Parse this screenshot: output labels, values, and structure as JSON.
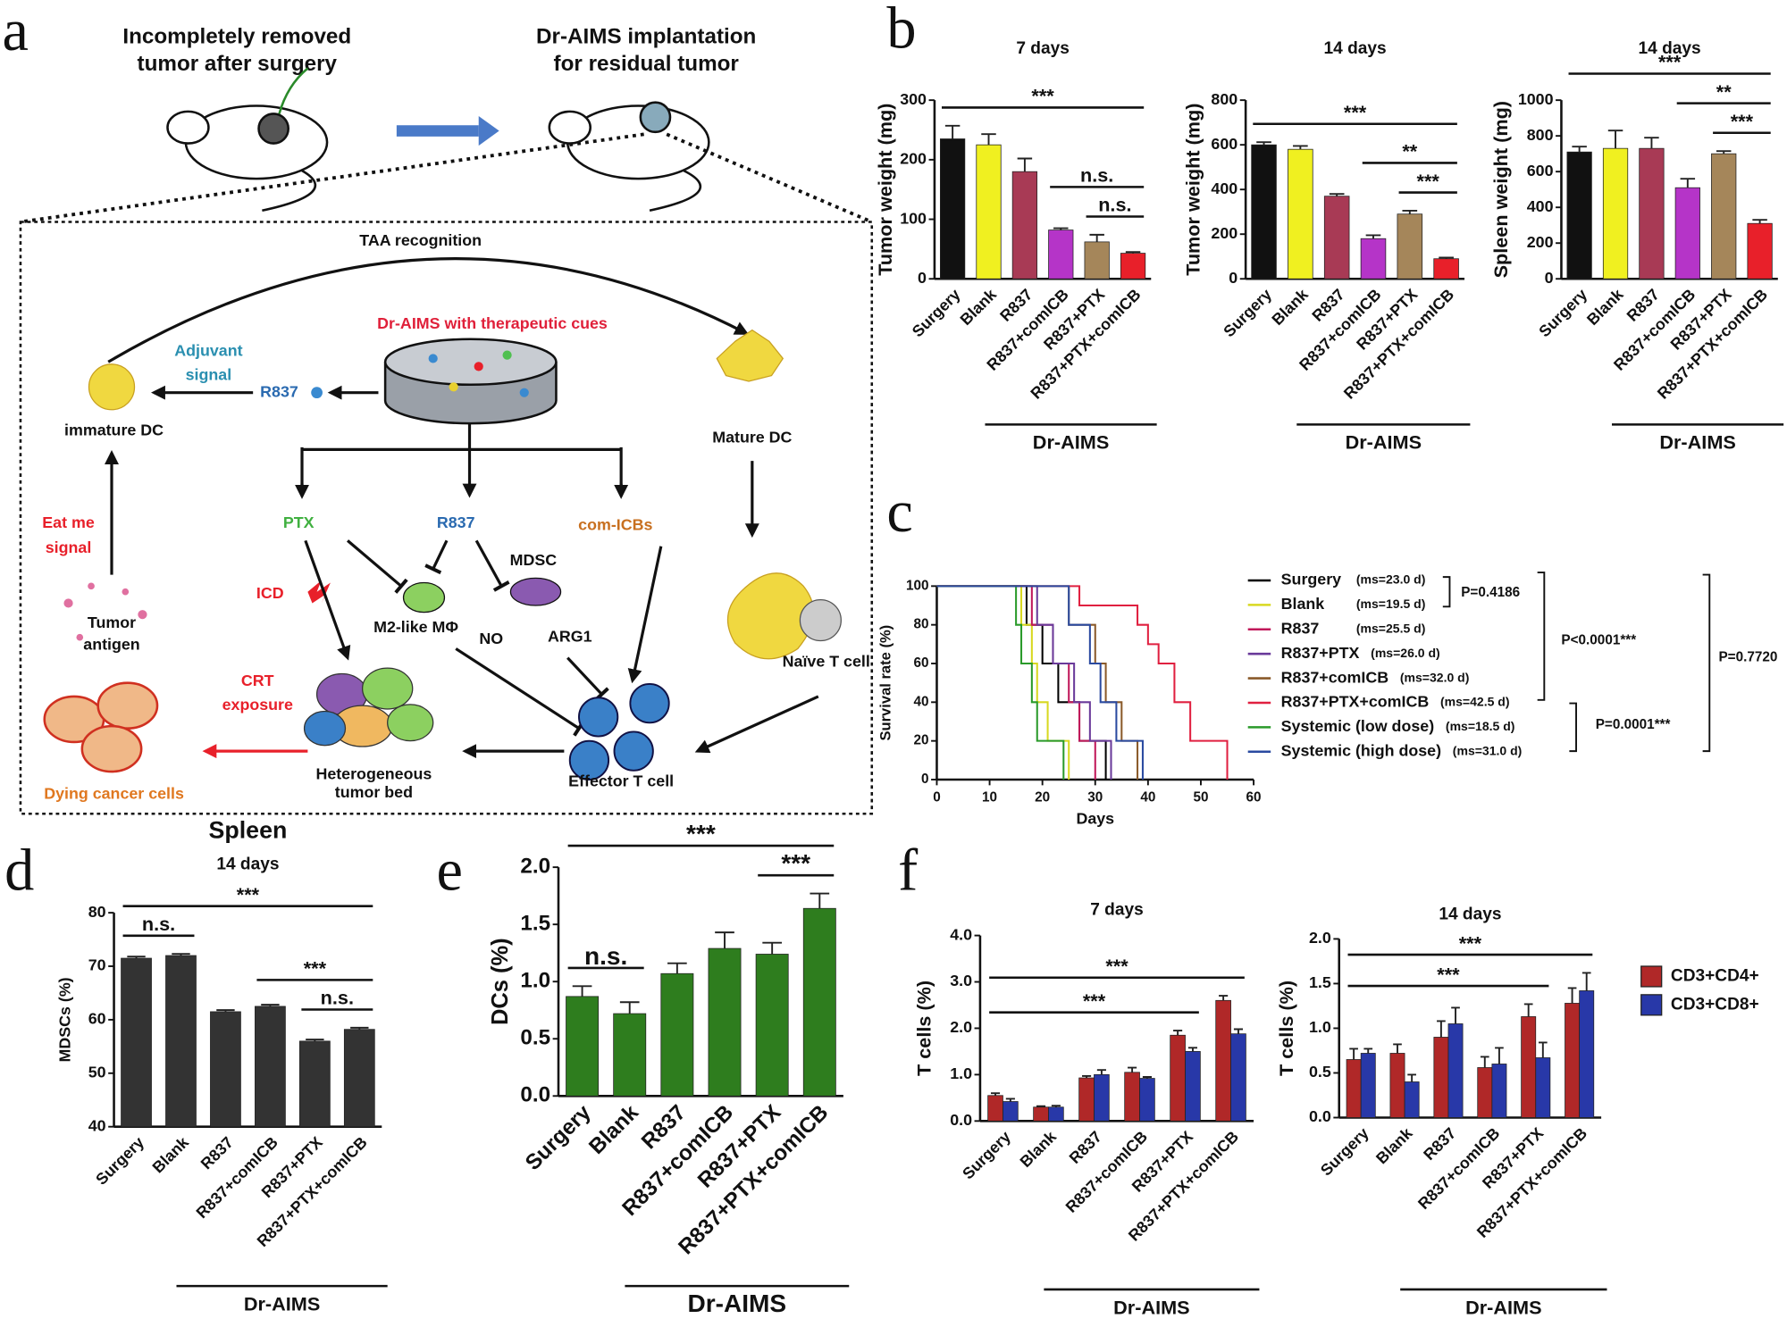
{
  "panel_labels": [
    "a",
    "b",
    "c",
    "d",
    "e",
    "f"
  ],
  "diagram": {
    "left_caption": [
      "Incompletely removed",
      "tumor after surgery"
    ],
    "right_caption": [
      "Dr-AIMS implantation",
      "for residual tumor"
    ],
    "taa": "TAA recognition",
    "scaffold": "Dr-AIMS with therapeutic cues",
    "adjuvant": [
      "Adjuvant",
      "signal"
    ],
    "r837_top": "R837",
    "immature_dc": "immature DC",
    "mature_dc": "Mature DC",
    "ptx": "PTX",
    "r837_mid": "R837",
    "com_icbs": "com-ICBs",
    "icd": "ICD",
    "m2": "M2-like MΦ",
    "mdsc": "MDSC",
    "no": "NO",
    "arg1": "ARG1",
    "eat_me": [
      "Eat me",
      "signal"
    ],
    "tumor_antigen": [
      "Tumor",
      "antigen"
    ],
    "crt": [
      "CRT",
      "exposure"
    ],
    "tumor_bed": [
      "Heterogeneous",
      "tumor bed"
    ],
    "effector": "Effector T cell",
    "naive": "Naïve T cell",
    "dying": "Dying cancer cells"
  },
  "chart_data": [
    {
      "type": "bar",
      "title": "7 days",
      "y_label": "Tumor weight (mg)",
      "group_label": "Dr-AIMS",
      "categories": [
        "Surgery",
        "Blank",
        "R837",
        "R837+comICB",
        "R837+PTX",
        "R837+PTX+comICB"
      ],
      "values": [
        235,
        225,
        180,
        82,
        62,
        43
      ],
      "errors": [
        22,
        18,
        22,
        3,
        12,
        2
      ],
      "colors": [
        "#111111",
        "#f0f020",
        "#a83a55",
        "#b534c8",
        "#a5865a",
        "#e8202a"
      ],
      "ylim": [
        0,
        300
      ],
      "yticks": [
        0,
        100,
        200,
        300
      ],
      "annotations": [
        {
          "text": "***",
          "from": "Surgery",
          "to": "R837+PTX+comICB"
        },
        {
          "text": "n.s.",
          "from": "R837+comICB",
          "to": "R837+PTX+comICB"
        },
        {
          "text": "n.s.",
          "from": "R837+PTX",
          "to": "R837+PTX+comICB"
        }
      ]
    },
    {
      "type": "bar",
      "title": "14 days",
      "y_label": "Tumor weight (mg)",
      "group_label": "Dr-AIMS",
      "categories": [
        "Surgery",
        "Blank",
        "R837",
        "R837+comICB",
        "R837+PTX",
        "R837+PTX+comICB"
      ],
      "values": [
        600,
        580,
        370,
        180,
        290,
        90
      ],
      "errors": [
        12,
        15,
        10,
        15,
        15,
        5
      ],
      "colors": [
        "#111111",
        "#f0f020",
        "#a83a55",
        "#b534c8",
        "#a5865a",
        "#e8202a"
      ],
      "ylim": [
        0,
        800
      ],
      "yticks": [
        0,
        200,
        400,
        600,
        800
      ],
      "annotations": [
        {
          "text": "***",
          "from": "Surgery",
          "to": "R837+PTX+comICB"
        },
        {
          "text": "**",
          "from": "R837+comICB",
          "to": "R837+PTX+comICB"
        },
        {
          "text": "***",
          "from": "R837+PTX",
          "to": "R837+PTX+comICB"
        }
      ]
    },
    {
      "type": "bar",
      "title": "14 days",
      "y_label": "Spleen weight (mg)",
      "group_label": "Dr-AIMS",
      "categories": [
        "Surgery",
        "Blank",
        "R837",
        "R837+comICB",
        "R837+PTX",
        "R837+PTX+comICB"
      ],
      "values": [
        710,
        730,
        730,
        510,
        700,
        310
      ],
      "errors": [
        30,
        100,
        60,
        50,
        15,
        20
      ],
      "colors": [
        "#111111",
        "#f0f020",
        "#a83a55",
        "#b534c8",
        "#a5865a",
        "#e8202a"
      ],
      "ylim": [
        0,
        1000
      ],
      "yticks": [
        0,
        200,
        400,
        600,
        800,
        1000
      ],
      "annotations": [
        {
          "text": "***",
          "from": "Surgery",
          "to": "R837+PTX+comICB"
        },
        {
          "text": "**",
          "from": "R837+comICB",
          "to": "R837+PTX+comICB"
        },
        {
          "text": "***",
          "from": "R837+PTX",
          "to": "R837+PTX+comICB"
        }
      ]
    },
    {
      "type": "step",
      "x_label": "Days",
      "y_label": "Survival rate (%)",
      "xlim": [
        0,
        60
      ],
      "xticks": [
        0,
        10,
        20,
        30,
        40,
        50,
        60
      ],
      "ylim": [
        0,
        100
      ],
      "yticks": [
        0,
        20,
        40,
        60,
        80,
        100
      ],
      "series": [
        {
          "name": "Surgery",
          "note": "(ms=23.0 d)",
          "color": "#000000",
          "x": [
            0,
            17,
            20,
            23,
            27,
            32
          ],
          "values": [
            100,
            80,
            60,
            40,
            20,
            0
          ]
        },
        {
          "name": "Blank",
          "note": "(ms=19.5 d)",
          "color": "#d8d820",
          "x": [
            0,
            16,
            18,
            19,
            21,
            25
          ],
          "values": [
            100,
            80,
            60,
            40,
            20,
            0
          ]
        },
        {
          "name": "R837",
          "note": "(ms=25.5 d)",
          "color": "#c0185a",
          "x": [
            0,
            18,
            22,
            25,
            27,
            30
          ],
          "values": [
            100,
            80,
            60,
            40,
            20,
            0
          ]
        },
        {
          "name": "R837+PTX",
          "note": "(ms=26.0 d)",
          "color": "#6a3a9a",
          "x": [
            0,
            19,
            22,
            26,
            29,
            33
          ],
          "values": [
            100,
            80,
            60,
            40,
            20,
            0
          ]
        },
        {
          "name": "R837+comICB",
          "note": "(ms=32.0 d)",
          "color": "#8a5a2a",
          "x": [
            0,
            25,
            30,
            32,
            35,
            38
          ],
          "values": [
            100,
            80,
            60,
            40,
            20,
            0
          ]
        },
        {
          "name": "R837+PTX+comICB",
          "note": "(ms=42.5 d)",
          "color": "#e02040",
          "x": [
            0,
            27,
            38,
            40,
            42,
            45,
            48,
            55
          ],
          "values": [
            100,
            90,
            80,
            70,
            60,
            40,
            20,
            0
          ]
        },
        {
          "name": "Systemic (low dose)",
          "note": "(ms=18.5 d)",
          "color": "#2a9a2a",
          "x": [
            0,
            15,
            16,
            18,
            19,
            24
          ],
          "values": [
            100,
            80,
            60,
            40,
            20,
            0
          ]
        },
        {
          "name": "Systemic (high dose)",
          "note": "(ms=31.0 d)",
          "color": "#2a4aa0",
          "x": [
            0,
            25,
            29,
            31,
            34,
            39
          ],
          "values": [
            100,
            80,
            60,
            40,
            20,
            0
          ]
        }
      ],
      "annotations": [
        "P=0.4186",
        "P<0.0001***",
        "P=0.7720",
        "P=0.0001***"
      ]
    },
    {
      "type": "bar",
      "suptitle": "Spleen",
      "title": "14 days",
      "y_label": "MDSCs (%)",
      "group_label": "Dr-AIMS",
      "categories": [
        "Surgery",
        "Blank",
        "R837",
        "R837+comICB",
        "R837+PTX",
        "R837+PTX+comICB"
      ],
      "values": [
        71.5,
        72,
        61.5,
        62.5,
        56,
        58.2
      ],
      "errors": [
        0.3,
        0.3,
        0.3,
        0.3,
        0.3,
        0.3
      ],
      "color": "#333333",
      "ylim": [
        40,
        80
      ],
      "yticks": [
        40,
        50,
        60,
        70,
        80
      ],
      "annotations": [
        {
          "text": "***",
          "from": "Surgery",
          "to": "R837+PTX+comICB"
        },
        {
          "text": "n.s.",
          "from": "Surgery",
          "to": "Blank"
        },
        {
          "text": "***",
          "from": "R837+comICB",
          "to": "R837+PTX+comICB"
        },
        {
          "text": "n.s.",
          "from": "R837+PTX",
          "to": "R837+PTX+comICB"
        }
      ]
    },
    {
      "type": "bar",
      "y_label": "DCs (%)",
      "group_label": "Dr-AIMS",
      "categories": [
        "Surgery",
        "Blank",
        "R837",
        "R837+comICB",
        "R837+PTX",
        "R837+PTX+comICB"
      ],
      "values": [
        0.87,
        0.72,
        1.07,
        1.29,
        1.24,
        1.64
      ],
      "errors": [
        0.09,
        0.1,
        0.09,
        0.14,
        0.1,
        0.13
      ],
      "color": "#2e7d1e",
      "ylim": [
        0,
        2
      ],
      "yticks": [
        {
          "value": 0,
          "label": "0.0"
        },
        0.5,
        {
          "value": 1,
          "label": "1.0"
        },
        1.5,
        {
          "value": 2,
          "label": "2.0"
        }
      ],
      "annotations": [
        {
          "text": "***",
          "from": "Surgery",
          "to": "R837+PTX+comICB"
        },
        {
          "text": "n.s.",
          "from": "Surgery",
          "to": "Blank"
        },
        {
          "text": "***",
          "from": "R837+PTX",
          "to": "R837+PTX+comICB"
        }
      ]
    },
    {
      "type": "bar",
      "title": "7 days",
      "y_label": "T cells (%)",
      "group_label": "Dr-AIMS",
      "categories": [
        "Surgery",
        "Blank",
        "R837",
        "R837+comICB",
        "R837+PTX",
        "R837+PTX+comICB"
      ],
      "series": [
        {
          "color": "#b02828",
          "values": [
            0.55,
            0.3,
            0.93,
            1.05,
            1.85,
            2.6
          ],
          "errors": [
            0.05,
            0.02,
            0.04,
            0.1,
            0.1,
            0.1
          ]
        },
        {
          "color": "#2838a8",
          "values": [
            0.42,
            0.3,
            1.0,
            0.92,
            1.5,
            1.88
          ],
          "errors": [
            0.06,
            0.03,
            0.1,
            0.03,
            0.08,
            0.1
          ]
        }
      ],
      "ylim": [
        0,
        4
      ],
      "yticks": [
        {
          "value": 0,
          "label": "0.0"
        },
        {
          "value": 1,
          "label": "1.0"
        },
        {
          "value": 2,
          "label": "2.0"
        },
        {
          "value": 3,
          "label": "3.0"
        },
        {
          "value": 4,
          "label": "4.0"
        }
      ],
      "annotations": [
        {
          "text": "***",
          "from": "Surgery",
          "to": "R837+PTX+comICB"
        },
        {
          "text": "***",
          "from": "Surgery",
          "to": "R837+PTX"
        }
      ]
    },
    {
      "type": "bar",
      "title": "14 days",
      "y_label": "T cells (%)",
      "group_label": "Dr-AIMS",
      "legend": "right",
      "categories": [
        "Surgery",
        "Blank",
        "R837",
        "R837+comICB",
        "R837+PTX",
        "R837+PTX+comICB"
      ],
      "series": [
        {
          "name": "CD3+CD4+",
          "color": "#b02828",
          "values": [
            0.65,
            0.72,
            0.9,
            0.56,
            1.13,
            1.28
          ],
          "errors": [
            0.12,
            0.1,
            0.18,
            0.12,
            0.14,
            0.17
          ]
        },
        {
          "name": "CD3+CD8+",
          "color": "#2838a8",
          "values": [
            0.72,
            0.4,
            1.05,
            0.6,
            0.67,
            1.42
          ],
          "errors": [
            0.05,
            0.08,
            0.18,
            0.18,
            0.17,
            0.2
          ]
        }
      ],
      "ylim": [
        0,
        2
      ],
      "yticks": [
        {
          "value": 0,
          "label": "0.0"
        },
        0.5,
        {
          "value": 1,
          "label": "1.0"
        },
        1.5,
        {
          "value": 2,
          "label": "2.0"
        }
      ],
      "annotations": [
        {
          "text": "***",
          "from": "Surgery",
          "to": "R837+PTX+comICB"
        },
        {
          "text": "***",
          "from": "Surgery",
          "to": "R837+PTX"
        }
      ]
    }
  ]
}
